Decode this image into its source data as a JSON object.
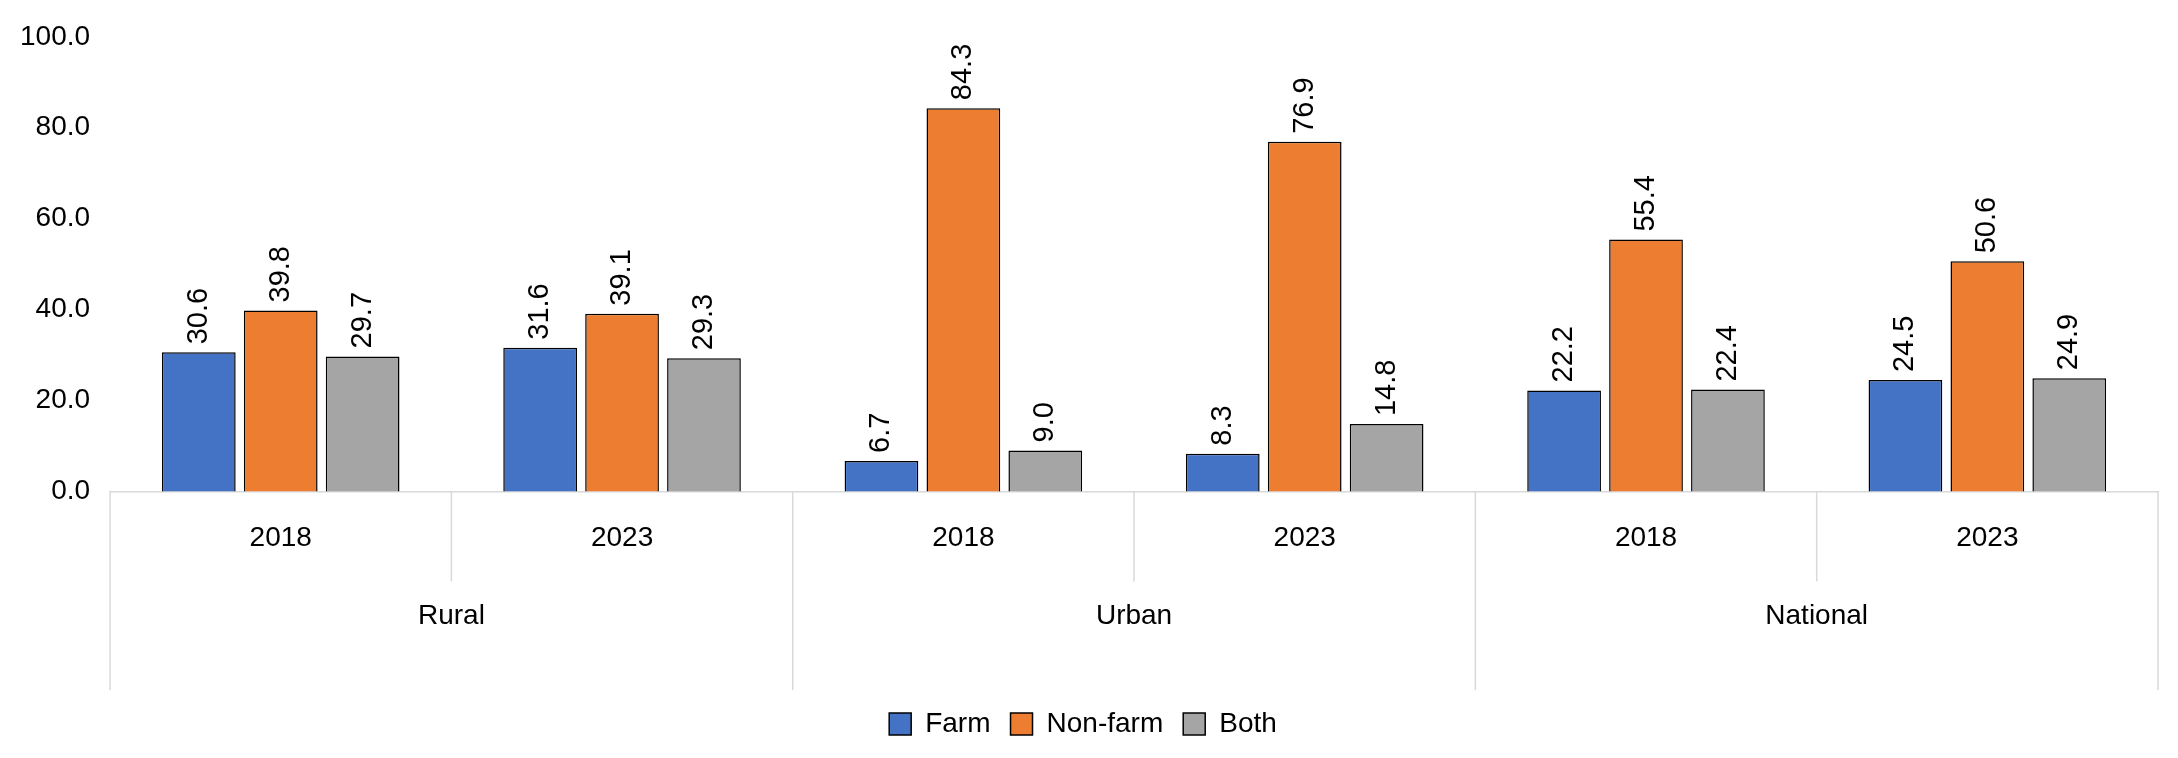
{
  "chart_data": {
    "type": "bar",
    "categories": [
      "2018",
      "2023",
      "2018",
      "2023",
      "2018",
      "2023"
    ],
    "series": [
      {
        "name": "Farm",
        "color": "#4472c4",
        "values": [
          30.6,
          31.6,
          6.7,
          8.3,
          22.2,
          24.5
        ],
        "value_labels": [
          "30.6",
          "31.6",
          "6.7",
          "8.3",
          "22.2",
          "24.5"
        ]
      },
      {
        "name": "Non-farm",
        "color": "#ed7d31",
        "values": [
          39.8,
          39.1,
          84.3,
          76.9,
          55.4,
          50.6
        ],
        "value_labels": [
          "39.8",
          "39.1",
          "84.3",
          "76.9",
          "55.4",
          "50.6"
        ]
      },
      {
        "name": "Both",
        "color": "#a5a5a5",
        "values": [
          29.7,
          29.3,
          9.0,
          14.8,
          22.4,
          24.9
        ],
        "value_labels": [
          "29.7",
          "29.3",
          "9.0",
          "14.8",
          "22.4",
          "24.9"
        ]
      }
    ],
    "annotations": [
      "Rural",
      "Urban",
      "National"
    ],
    "ylim": [
      0,
      100
    ],
    "yticks": [
      {
        "value": 0,
        "label": "0.0"
      },
      {
        "value": 20,
        "label": "20.0"
      },
      {
        "value": 40,
        "label": "40.0"
      },
      {
        "value": 60,
        "label": "60.0"
      },
      {
        "value": 80,
        "label": "80.0"
      },
      {
        "value": 100,
        "label": "100.0"
      }
    ],
    "grid": false,
    "legend": "bottom"
  }
}
